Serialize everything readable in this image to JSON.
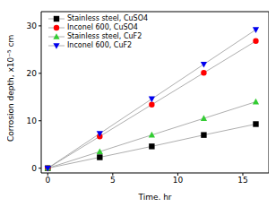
{
  "chart_data": {
    "type": "line",
    "x_label": "Time, hr",
    "y_label": "Corrosion depth, x10⁻⁵ cm",
    "x": [
      0,
      4,
      8,
      12,
      16
    ],
    "xlim": [
      -0.5,
      17
    ],
    "xticks": [
      0,
      5,
      10,
      15
    ],
    "ylim": [
      -1,
      33
    ],
    "yticks": [
      0,
      10,
      20,
      30
    ],
    "grid": false,
    "legend": "upper left",
    "series": [
      {
        "name": "Stainless steel, CuSO4",
        "color": "#000000",
        "marker": "square",
        "values": [
          0,
          2.3,
          4.6,
          7,
          9.3
        ]
      },
      {
        "name": "Inconel 600, CuSO4",
        "color": "#ff0000",
        "marker": "circle",
        "values": [
          0,
          6.7,
          13.4,
          20.1,
          26.8
        ]
      },
      {
        "name": "Stainless steel, CuF2",
        "color": "#33cc33",
        "marker": "triangle",
        "values": [
          0,
          3.5,
          7,
          10.5,
          14
        ]
      },
      {
        "name": "Inconel 600, CuF2",
        "color": "#0000ee",
        "marker": "triangle-down",
        "values": [
          0,
          7.3,
          14.6,
          21.9,
          29.2
        ]
      }
    ]
  }
}
